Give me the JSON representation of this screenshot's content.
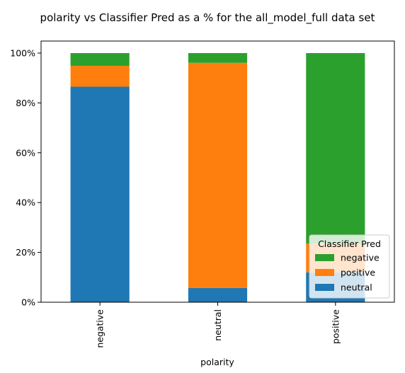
{
  "chart_data": {
    "type": "bar",
    "stacked": true,
    "title": "polarity vs Classifier Pred as a % for the all_model_full data set",
    "xlabel": "polarity",
    "ylabel": "",
    "categories": [
      "negative",
      "neutral",
      "positive"
    ],
    "ylim": [
      0,
      100
    ],
    "yticks": [
      "0%",
      "20%",
      "40%",
      "60%",
      "80%",
      "100%"
    ],
    "series": [
      {
        "name": "neutral",
        "color": "#1f77b4",
        "values": [
          86.5,
          5.7,
          12.0
        ]
      },
      {
        "name": "positive",
        "color": "#ff7f0e",
        "values": [
          8.4,
          90.4,
          11.5
        ]
      },
      {
        "name": "negative",
        "color": "#2ca02c",
        "values": [
          5.1,
          3.9,
          76.5
        ]
      }
    ],
    "legend": {
      "title": "Classifier Pred",
      "position": "lower-right",
      "entries": [
        "negative",
        "positive",
        "neutral"
      ]
    },
    "grid": false
  }
}
